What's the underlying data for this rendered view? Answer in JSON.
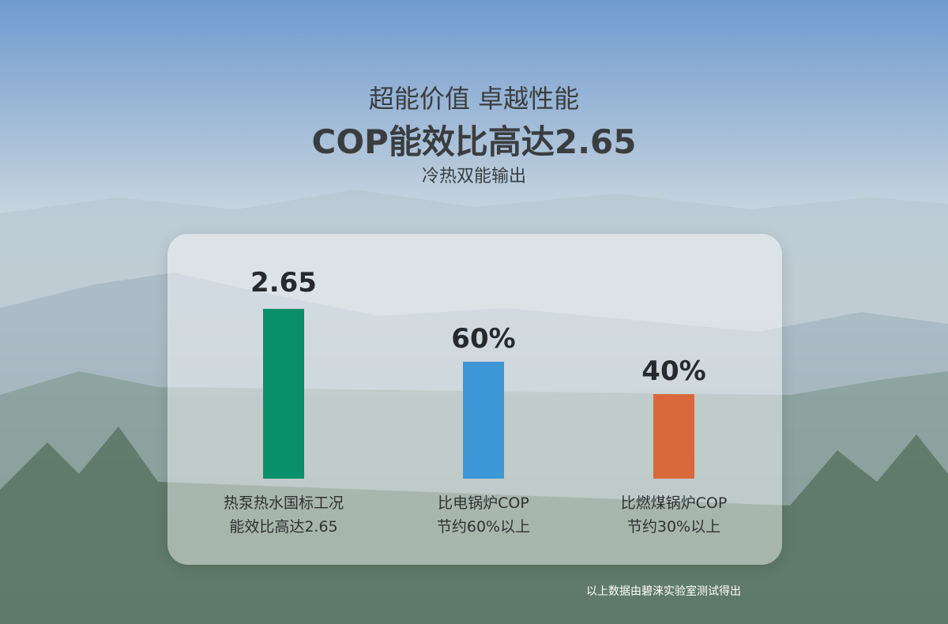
{
  "header": {
    "subtitle": "超能价值 卓越性能",
    "title": "COP能效比高达2.65",
    "tagline": "冷热双能输出"
  },
  "panel": {
    "items": [
      {
        "value": "2.65",
        "label": [
          "热泵热水国标工况",
          "能效比高达2.65"
        ]
      },
      {
        "value": "60%",
        "label": [
          "比电锅炉COP",
          "节约60%以上"
        ]
      },
      {
        "value": "40%",
        "label": [
          "比燃煤锅炉COP",
          "节约30%以上"
        ]
      }
    ]
  },
  "footnote": "以上数据由碧涞实验室测试得出"
}
